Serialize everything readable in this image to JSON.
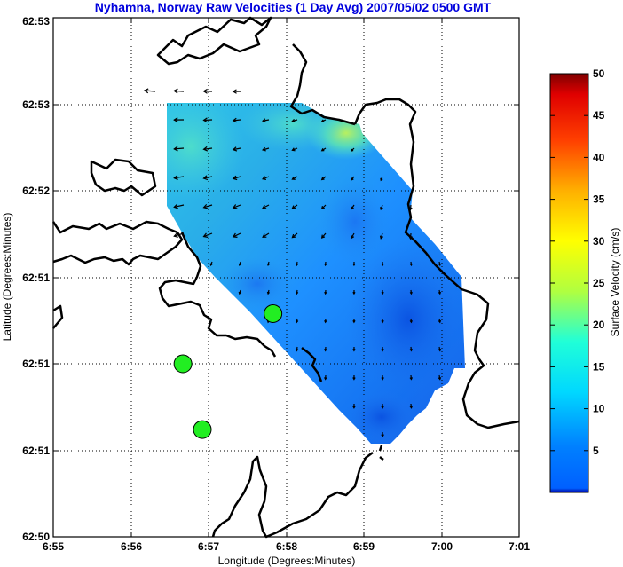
{
  "chart_data": {
    "type": "heatmap",
    "title": "Nyhamna, Norway Raw Velocities (1 Day Avg) 2007/05/02 0500 GMT",
    "xlabel": "Longitude (Degrees:Minutes)",
    "ylabel": "Latitude (Degrees:Minutes)",
    "x_tick_labels": [
      "6:55",
      "6:56",
      "6:57",
      "6:58",
      "6:59",
      "7:00",
      "7:01"
    ],
    "y_tick_labels": [
      "62:50",
      "62:51",
      "62:51",
      "62:51",
      "62:52",
      "62:53",
      "62:53"
    ],
    "grid": true,
    "colorbar": {
      "label": "Surface Velocity (cm/s)",
      "min": 0,
      "max": 50,
      "tick_labels": [
        "5",
        "10",
        "15",
        "20",
        "25",
        "30",
        "35",
        "40",
        "45",
        "50"
      ],
      "colormap": "jet"
    },
    "stations": [
      {
        "lon_min": 1.67,
        "lat_min": 1.0
      },
      {
        "lon_min": 1.92,
        "lat_min": 0.62
      },
      {
        "lon_min": 2.83,
        "lat_min": 1.29
      }
    ],
    "velocity_field_cm_s": {
      "range": [
        3,
        22
      ],
      "note_high": "NE edge ~16-22",
      "note_low": "SE region ~3-6"
    }
  },
  "colors": {
    "title": "#0000dd",
    "coastline": "#000000",
    "station_fill": "#22ee22",
    "arrow": "#000000"
  }
}
